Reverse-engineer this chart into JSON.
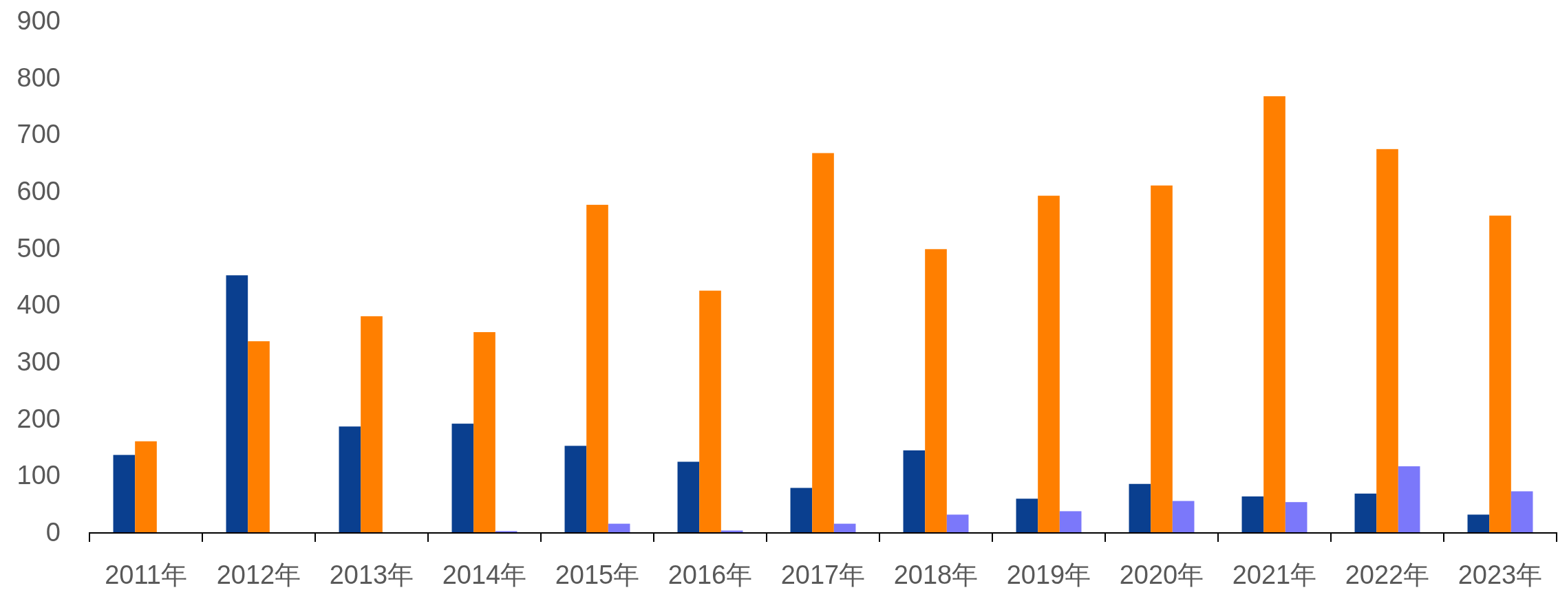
{
  "chart_data": {
    "type": "bar",
    "categories": [
      "2011年",
      "2012年",
      "2013年",
      "2014年",
      "2015年",
      "2016年",
      "2017年",
      "2018年",
      "2019年",
      "2020年",
      "2021年",
      "2022年",
      "2023年"
    ],
    "series": [
      {
        "color": "#0a3f8f",
        "values": [
          136,
          452,
          186,
          191,
          152,
          124,
          78,
          144,
          59,
          85,
          63,
          68,
          31
        ]
      },
      {
        "color": "#ff7f00",
        "values": [
          160,
          336,
          380,
          352,
          576,
          425,
          667,
          498,
          592,
          610,
          767,
          674,
          557
        ]
      },
      {
        "color": "#7b78fa",
        "values": [
          null,
          null,
          null,
          2,
          15,
          3,
          15,
          31,
          37,
          55,
          53,
          116,
          72
        ]
      }
    ],
    "ylim": [
      0,
      900
    ],
    "yticks": [
      0,
      100,
      200,
      300,
      400,
      500,
      600,
      700,
      800,
      900
    ],
    "grid": false
  }
}
